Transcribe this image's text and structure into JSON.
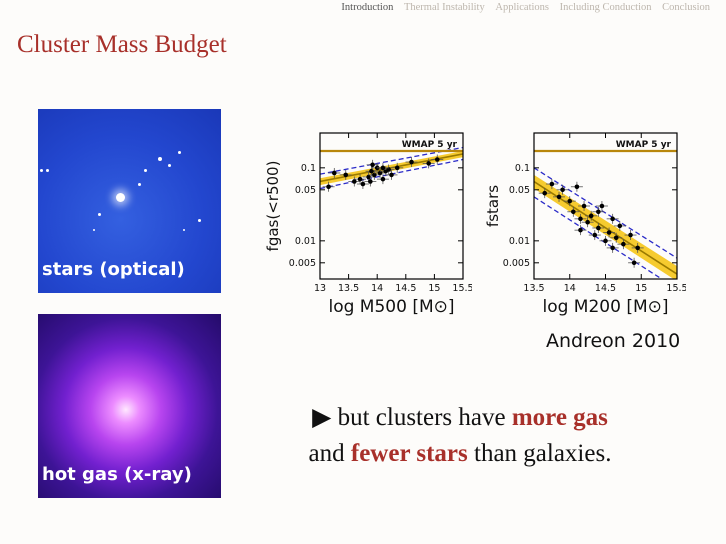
{
  "nav": {
    "items": [
      "Introduction",
      "Thermal Instability",
      "Applications",
      "Including Conduction",
      "Conclusion"
    ],
    "active": "Introduction"
  },
  "title": "Cluster Mass Budget",
  "images": {
    "optical_label": "stars (optical)",
    "xray_label": "hot gas (x-ray)"
  },
  "credit": "Andreon 2010",
  "caption": {
    "bullet": "▶",
    "part1": "but clusters have",
    "hl1": "more gas",
    "part2": "and",
    "hl2": "fewer stars",
    "part3": "than galaxies."
  },
  "colors": {
    "title": "#a8302a",
    "band": "#f5c518",
    "fit_line": "#9a7a00",
    "dashed": "#2b2bc8",
    "wmap_line": "#b8860b"
  },
  "chart_data": [
    {
      "type": "scatter",
      "xlabel": "log M500 [M⊙]",
      "ylabel": "fgas(<r500)",
      "x_log_scale": false,
      "y_log_scale": true,
      "xlim": [
        13,
        15.5
      ],
      "ylim": [
        0.003,
        0.3
      ],
      "xticks": [
        "13",
        "13.5",
        "14",
        "14.5",
        "15",
        "15.5"
      ],
      "yticks": [
        "0.005",
        "0.01",
        "0.05",
        "0.1"
      ],
      "ytick_values": [
        0.005,
        0.01,
        0.05,
        0.1
      ],
      "annotation": "WMAP 5 yr",
      "wmap_value": 0.17,
      "fit": {
        "x": [
          13,
          15.5
        ],
        "y": [
          0.065,
          0.155
        ]
      },
      "band": {
        "x": [
          13,
          15.5
        ],
        "low": [
          0.058,
          0.14
        ],
        "high": [
          0.072,
          0.17
        ]
      },
      "dashed": [
        {
          "x": [
            13,
            15.5
          ],
          "y": [
            0.052,
            0.13
          ]
        },
        {
          "x": [
            13,
            15.5
          ],
          "y": [
            0.082,
            0.19
          ]
        }
      ],
      "points": [
        {
          "x": 13.15,
          "y": 0.055
        },
        {
          "x": 13.25,
          "y": 0.085
        },
        {
          "x": 13.45,
          "y": 0.08
        },
        {
          "x": 13.6,
          "y": 0.065
        },
        {
          "x": 13.7,
          "y": 0.07
        },
        {
          "x": 13.75,
          "y": 0.06
        },
        {
          "x": 13.85,
          "y": 0.075
        },
        {
          "x": 13.9,
          "y": 0.09
        },
        {
          "x": 13.95,
          "y": 0.08
        },
        {
          "x": 14.0,
          "y": 0.1
        },
        {
          "x": 14.05,
          "y": 0.085
        },
        {
          "x": 14.1,
          "y": 0.07
        },
        {
          "x": 14.15,
          "y": 0.09
        },
        {
          "x": 14.2,
          "y": 0.095
        },
        {
          "x": 14.25,
          "y": 0.08
        },
        {
          "x": 13.88,
          "y": 0.065
        },
        {
          "x": 13.92,
          "y": 0.11
        },
        {
          "x": 14.1,
          "y": 0.1
        },
        {
          "x": 14.6,
          "y": 0.12
        },
        {
          "x": 14.9,
          "y": 0.115
        },
        {
          "x": 15.05,
          "y": 0.13
        },
        {
          "x": 14.35,
          "y": 0.1
        }
      ]
    },
    {
      "type": "scatter",
      "xlabel": "log M200 [M⊙]",
      "ylabel": "fstars",
      "x_log_scale": false,
      "y_log_scale": true,
      "xlim": [
        13.5,
        15.5
      ],
      "ylim": [
        0.003,
        0.3
      ],
      "xticks": [
        "13.5",
        "14",
        "14.5",
        "15",
        "15.5"
      ],
      "yticks": [
        "0.005",
        "0.01",
        "0.05",
        "0.1"
      ],
      "ytick_values": [
        0.005,
        0.01,
        0.05,
        0.1
      ],
      "annotation": "WMAP 5 yr",
      "wmap_value": 0.17,
      "fit": {
        "x": [
          13.5,
          15.5
        ],
        "y": [
          0.065,
          0.0035
        ]
      },
      "band": {
        "x": [
          13.5,
          15.5
        ],
        "low": [
          0.052,
          0.0028
        ],
        "high": [
          0.08,
          0.0045
        ]
      },
      "dashed": [
        {
          "x": [
            13.5,
            15.5
          ],
          "y": [
            0.04,
            0.0022
          ]
        },
        {
          "x": [
            13.5,
            15.5
          ],
          "y": [
            0.1,
            0.0058
          ]
        }
      ],
      "points": [
        {
          "x": 13.65,
          "y": 0.045
        },
        {
          "x": 13.75,
          "y": 0.06
        },
        {
          "x": 13.85,
          "y": 0.04
        },
        {
          "x": 13.9,
          "y": 0.05
        },
        {
          "x": 14.0,
          "y": 0.035
        },
        {
          "x": 14.05,
          "y": 0.025
        },
        {
          "x": 14.1,
          "y": 0.055
        },
        {
          "x": 14.15,
          "y": 0.02
        },
        {
          "x": 14.2,
          "y": 0.03
        },
        {
          "x": 14.25,
          "y": 0.018
        },
        {
          "x": 14.3,
          "y": 0.022
        },
        {
          "x": 14.35,
          "y": 0.012
        },
        {
          "x": 14.4,
          "y": 0.015
        },
        {
          "x": 14.45,
          "y": 0.03
        },
        {
          "x": 14.5,
          "y": 0.01
        },
        {
          "x": 14.55,
          "y": 0.013
        },
        {
          "x": 14.6,
          "y": 0.02
        },
        {
          "x": 14.65,
          "y": 0.011
        },
        {
          "x": 14.7,
          "y": 0.016
        },
        {
          "x": 14.75,
          "y": 0.009
        },
        {
          "x": 14.85,
          "y": 0.012
        },
        {
          "x": 14.9,
          "y": 0.005
        },
        {
          "x": 14.95,
          "y": 0.008
        },
        {
          "x": 14.15,
          "y": 0.014
        },
        {
          "x": 14.4,
          "y": 0.025
        },
        {
          "x": 14.6,
          "y": 0.008
        }
      ]
    }
  ]
}
